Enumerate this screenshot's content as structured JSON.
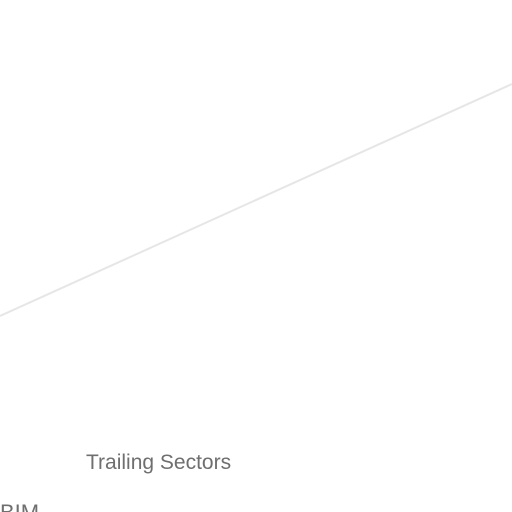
{
  "section": {
    "heading": "Trailing Sectors"
  },
  "list": {
    "first_item_fragment": "BIM"
  },
  "colors": {
    "background": "#ffffff",
    "divider": "#e6e6e6",
    "text": "#6f6f6f"
  }
}
